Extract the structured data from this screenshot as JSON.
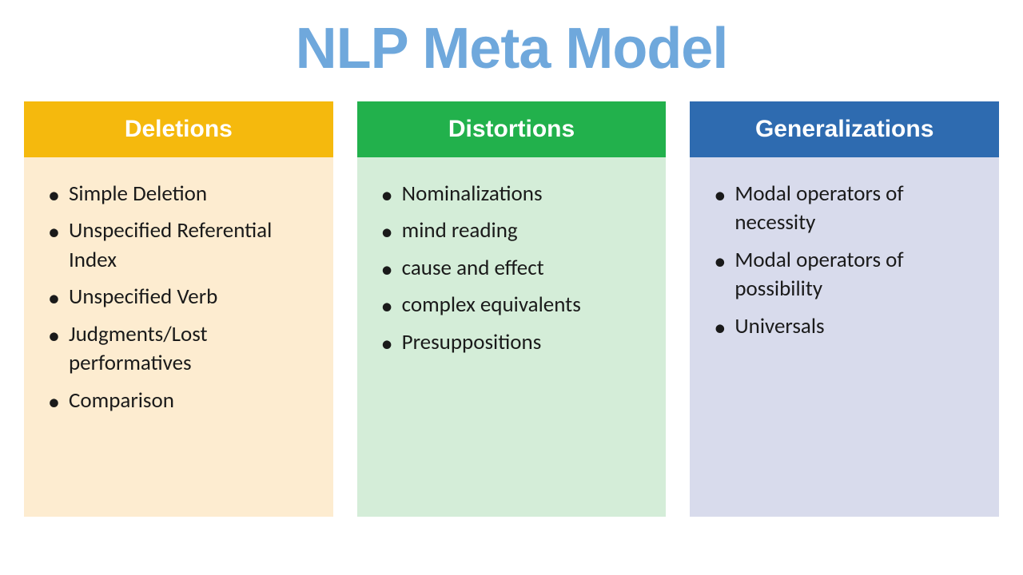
{
  "title": "NLP Meta Model",
  "title_color": "#6fa8dc",
  "title_fontsize": 72,
  "background_color": "#ffffff",
  "columns": [
    {
      "header": "Deletions",
      "header_bg": "#f5b90d",
      "body_bg": "#fdecd0",
      "items": [
        "Simple Deletion",
        "Unspecified Referential Index",
        "Unspecified Verb",
        "Judgments/Lost performatives",
        "Comparison"
      ]
    },
    {
      "header": "Distortions",
      "header_bg": "#22b14c",
      "body_bg": "#d4edd8",
      "items": [
        "Nominalizations",
        "mind reading",
        "cause and effect",
        "complex equivalents",
        "Presuppositions"
      ]
    },
    {
      "header": "Generalizations",
      "header_bg": "#2e6bb0",
      "body_bg": "#d8dbec",
      "items": [
        "Modal operators of necessity",
        "Modal operators of possibility",
        "Universals"
      ]
    }
  ],
  "item_fontsize": 27,
  "header_fontsize": 30,
  "text_color": "#1a1a1a",
  "header_text_color": "#ffffff"
}
